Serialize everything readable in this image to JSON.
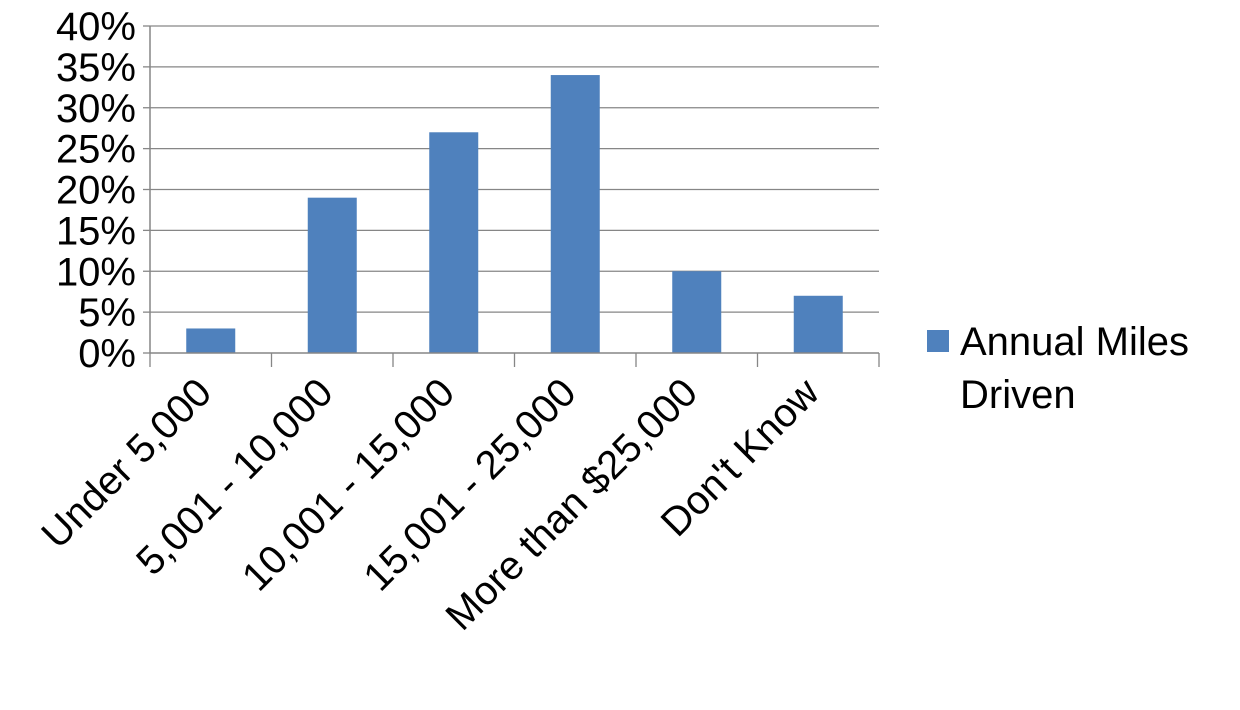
{
  "chart_data": {
    "type": "bar",
    "categories": [
      "Under 5,000",
      "5,001 - 10,000",
      "10,001 - 15,000",
      "15,001 - 25,000",
      "More than $25,000",
      "Don't Know"
    ],
    "series": [
      {
        "name": "Annual Miles Driven",
        "values": [
          3,
          19,
          27,
          34,
          10,
          7
        ],
        "color": "#4f81bd"
      }
    ],
    "ylim": [
      0,
      40
    ],
    "ytick_step": 5,
    "ytick_format": "percent",
    "grid": true,
    "legend_position": "right",
    "legend_lines": [
      "Annual Miles",
      "Driven"
    ]
  }
}
